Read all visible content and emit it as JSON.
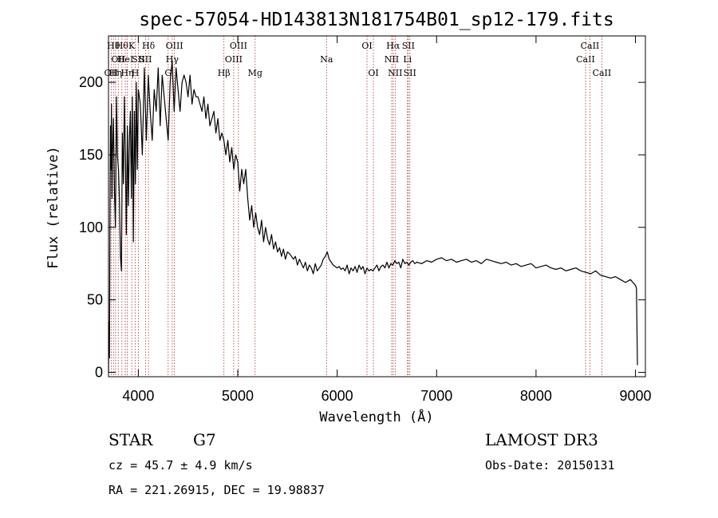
{
  "chart_data": {
    "type": "line",
    "title": "spec-57054-HD143813N181754B01_sp12-179.fits",
    "xlabel": "Wavelength (Å)",
    "ylabel": "Flux (relative)",
    "xlim": [
      3700,
      9100
    ],
    "ylim": [
      -3,
      232
    ],
    "xticks": [
      4000,
      5000,
      6000,
      7000,
      8000,
      9000
    ],
    "yticks": [
      0,
      50,
      100,
      150,
      200
    ],
    "grid": false,
    "series": [
      {
        "line_color": "#000000",
        "x": [
          3700,
          3705,
          3710,
          3715,
          3720,
          3725,
          3730,
          3735,
          3740,
          3750,
          3760,
          3770,
          3780,
          3790,
          3800,
          3810,
          3820,
          3830,
          3840,
          3850,
          3860,
          3870,
          3880,
          3890,
          3900,
          3910,
          3920,
          3930,
          3940,
          3950,
          3960,
          3970,
          3980,
          3990,
          4000,
          4020,
          4040,
          4060,
          4080,
          4100,
          4120,
          4140,
          4160,
          4180,
          4200,
          4220,
          4240,
          4260,
          4280,
          4300,
          4320,
          4340,
          4360,
          4380,
          4400,
          4420,
          4440,
          4460,
          4480,
          4500,
          4520,
          4540,
          4560,
          4580,
          4600,
          4620,
          4640,
          4660,
          4680,
          4700,
          4720,
          4740,
          4760,
          4780,
          4800,
          4820,
          4840,
          4860,
          4880,
          4900,
          4920,
          4940,
          4960,
          4980,
          5000,
          5020,
          5040,
          5060,
          5080,
          5100,
          5120,
          5140,
          5160,
          5180,
          5200,
          5220,
          5240,
          5260,
          5280,
          5300,
          5320,
          5340,
          5360,
          5380,
          5400,
          5420,
          5440,
          5460,
          5480,
          5500,
          5520,
          5540,
          5560,
          5580,
          5600,
          5620,
          5640,
          5660,
          5680,
          5700,
          5720,
          5740,
          5760,
          5780,
          5800,
          5820,
          5840,
          5860,
          5880,
          5900,
          5920,
          5940,
          5960,
          5980,
          6000,
          6020,
          6040,
          6060,
          6080,
          6100,
          6120,
          6140,
          6160,
          6180,
          6200,
          6220,
          6240,
          6260,
          6280,
          6300,
          6320,
          6340,
          6360,
          6380,
          6400,
          6420,
          6440,
          6460,
          6480,
          6500,
          6520,
          6540,
          6560,
          6580,
          6600,
          6620,
          6640,
          6660,
          6680,
          6700,
          6720,
          6740,
          6760,
          6780,
          6800,
          6850,
          6900,
          6950,
          7000,
          7050,
          7100,
          7150,
          7200,
          7250,
          7300,
          7350,
          7400,
          7450,
          7500,
          7550,
          7600,
          7650,
          7700,
          7750,
          7800,
          7850,
          7900,
          7950,
          8000,
          8050,
          8100,
          8150,
          8200,
          8250,
          8300,
          8350,
          8400,
          8450,
          8500,
          8550,
          8600,
          8650,
          8700,
          8750,
          8800,
          8850,
          8900,
          8950,
          9000,
          9010,
          9020
        ],
        "values": [
          0,
          35,
          10,
          110,
          170,
          140,
          185,
          120,
          150,
          175,
          125,
          100,
          190,
          150,
          140,
          120,
          80,
          70,
          165,
          130,
          190,
          150,
          95,
          170,
          115,
          160,
          180,
          120,
          190,
          90,
          180,
          130,
          200,
          140,
          195,
          185,
          150,
          210,
          160,
          205,
          180,
          160,
          195,
          180,
          210,
          170,
          205,
          190,
          175,
          160,
          200,
          215,
          180,
          210,
          195,
          180,
          200,
          205,
          200,
          190,
          205,
          185,
          195,
          190,
          190,
          185,
          180,
          190,
          175,
          185,
          170,
          175,
          180,
          165,
          175,
          160,
          165,
          160,
          150,
          160,
          145,
          155,
          140,
          150,
          145,
          125,
          140,
          130,
          140,
          120,
          105,
          115,
          100,
          110,
          100,
          95,
          105,
          90,
          100,
          92,
          88,
          95,
          85,
          90,
          83,
          86,
          80,
          85,
          78,
          83,
          82,
          80,
          78,
          80,
          74,
          78,
          75,
          72,
          76,
          70,
          74,
          72,
          68,
          75,
          70,
          72,
          74,
          78,
          80,
          83,
          78,
          76,
          74,
          73,
          72,
          73,
          71,
          72,
          70,
          74,
          68,
          72,
          70,
          73,
          69,
          74,
          71,
          73,
          68,
          72,
          70,
          71,
          70,
          72,
          74,
          70,
          73,
          74,
          72,
          76,
          72,
          75,
          74,
          77,
          75,
          76,
          72,
          78,
          75,
          76,
          74,
          76,
          77,
          75,
          76,
          75,
          77,
          76,
          78,
          79,
          77,
          78,
          76,
          77,
          78,
          76,
          77,
          75,
          78,
          77,
          76,
          75,
          76,
          74,
          75,
          73,
          74,
          75,
          72,
          73,
          74,
          72,
          71,
          72,
          70,
          71,
          72,
          70,
          69,
          68,
          70,
          67,
          66,
          65,
          66,
          64,
          62,
          64,
          60,
          58,
          5
        ]
      }
    ],
    "line_markers": [
      {
        "x": 3727,
        "label": "OII",
        "row": 3
      },
      {
        "x": 3750,
        "label": "Hθ",
        "row": 1
      },
      {
        "x": 3771,
        "label": "Hη",
        "row": 3
      },
      {
        "x": 3798,
        "label": "OII",
        "row": 2
      },
      {
        "x": 3835,
        "label": "Hθ",
        "row": 1
      },
      {
        "x": 3869,
        "label": "HeI",
        "row": 2
      },
      {
        "x": 3889,
        "label": "Hη",
        "row": 3
      },
      {
        "x": 3934,
        "label": "K",
        "row": 1
      },
      {
        "x": 3969,
        "label": "H",
        "row": 3
      },
      {
        "x": 4000,
        "label": "SII",
        "row": 2
      },
      {
        "x": 4072,
        "label": "SII",
        "row": 2
      },
      {
        "x": 4102,
        "label": "Hδ",
        "row": 1
      },
      {
        "x": 4300,
        "label": "G",
        "row": 3
      },
      {
        "x": 4341,
        "label": "Hγ",
        "row": 2
      },
      {
        "x": 4363,
        "label": "OIII",
        "row": 1
      },
      {
        "x": 4861,
        "label": "Hβ",
        "row": 3
      },
      {
        "x": 4959,
        "label": "OIII",
        "row": 2
      },
      {
        "x": 5007,
        "label": "OIII",
        "row": 1
      },
      {
        "x": 5175,
        "label": "Mg",
        "row": 3
      },
      {
        "x": 5893,
        "label": "Na",
        "row": 2
      },
      {
        "x": 6300,
        "label": "OI",
        "row": 1
      },
      {
        "x": 6364,
        "label": "OI",
        "row": 3
      },
      {
        "x": 6548,
        "label": "NII",
        "row": 2
      },
      {
        "x": 6563,
        "label": "Hα",
        "row": 1
      },
      {
        "x": 6583,
        "label": "NII",
        "row": 3
      },
      {
        "x": 6707,
        "label": "Li",
        "row": 2
      },
      {
        "x": 6716,
        "label": "SII",
        "row": 1
      },
      {
        "x": 6731,
        "label": "SII",
        "row": 3
      },
      {
        "x": 8498,
        "label": "CaII",
        "row": 2
      },
      {
        "x": 8542,
        "label": "CaII",
        "row": 1
      },
      {
        "x": 8662,
        "label": "CaII",
        "row": 3
      }
    ]
  },
  "info": {
    "object_class": "STAR",
    "subclass": "G7",
    "redshift": "cz = 45.7 ± 4.9 km/s",
    "coords": "RA = 221.26915, DEC =  19.98837",
    "survey": "LAMOST DR3",
    "obs_date": "Obs-Date: 20150131"
  }
}
